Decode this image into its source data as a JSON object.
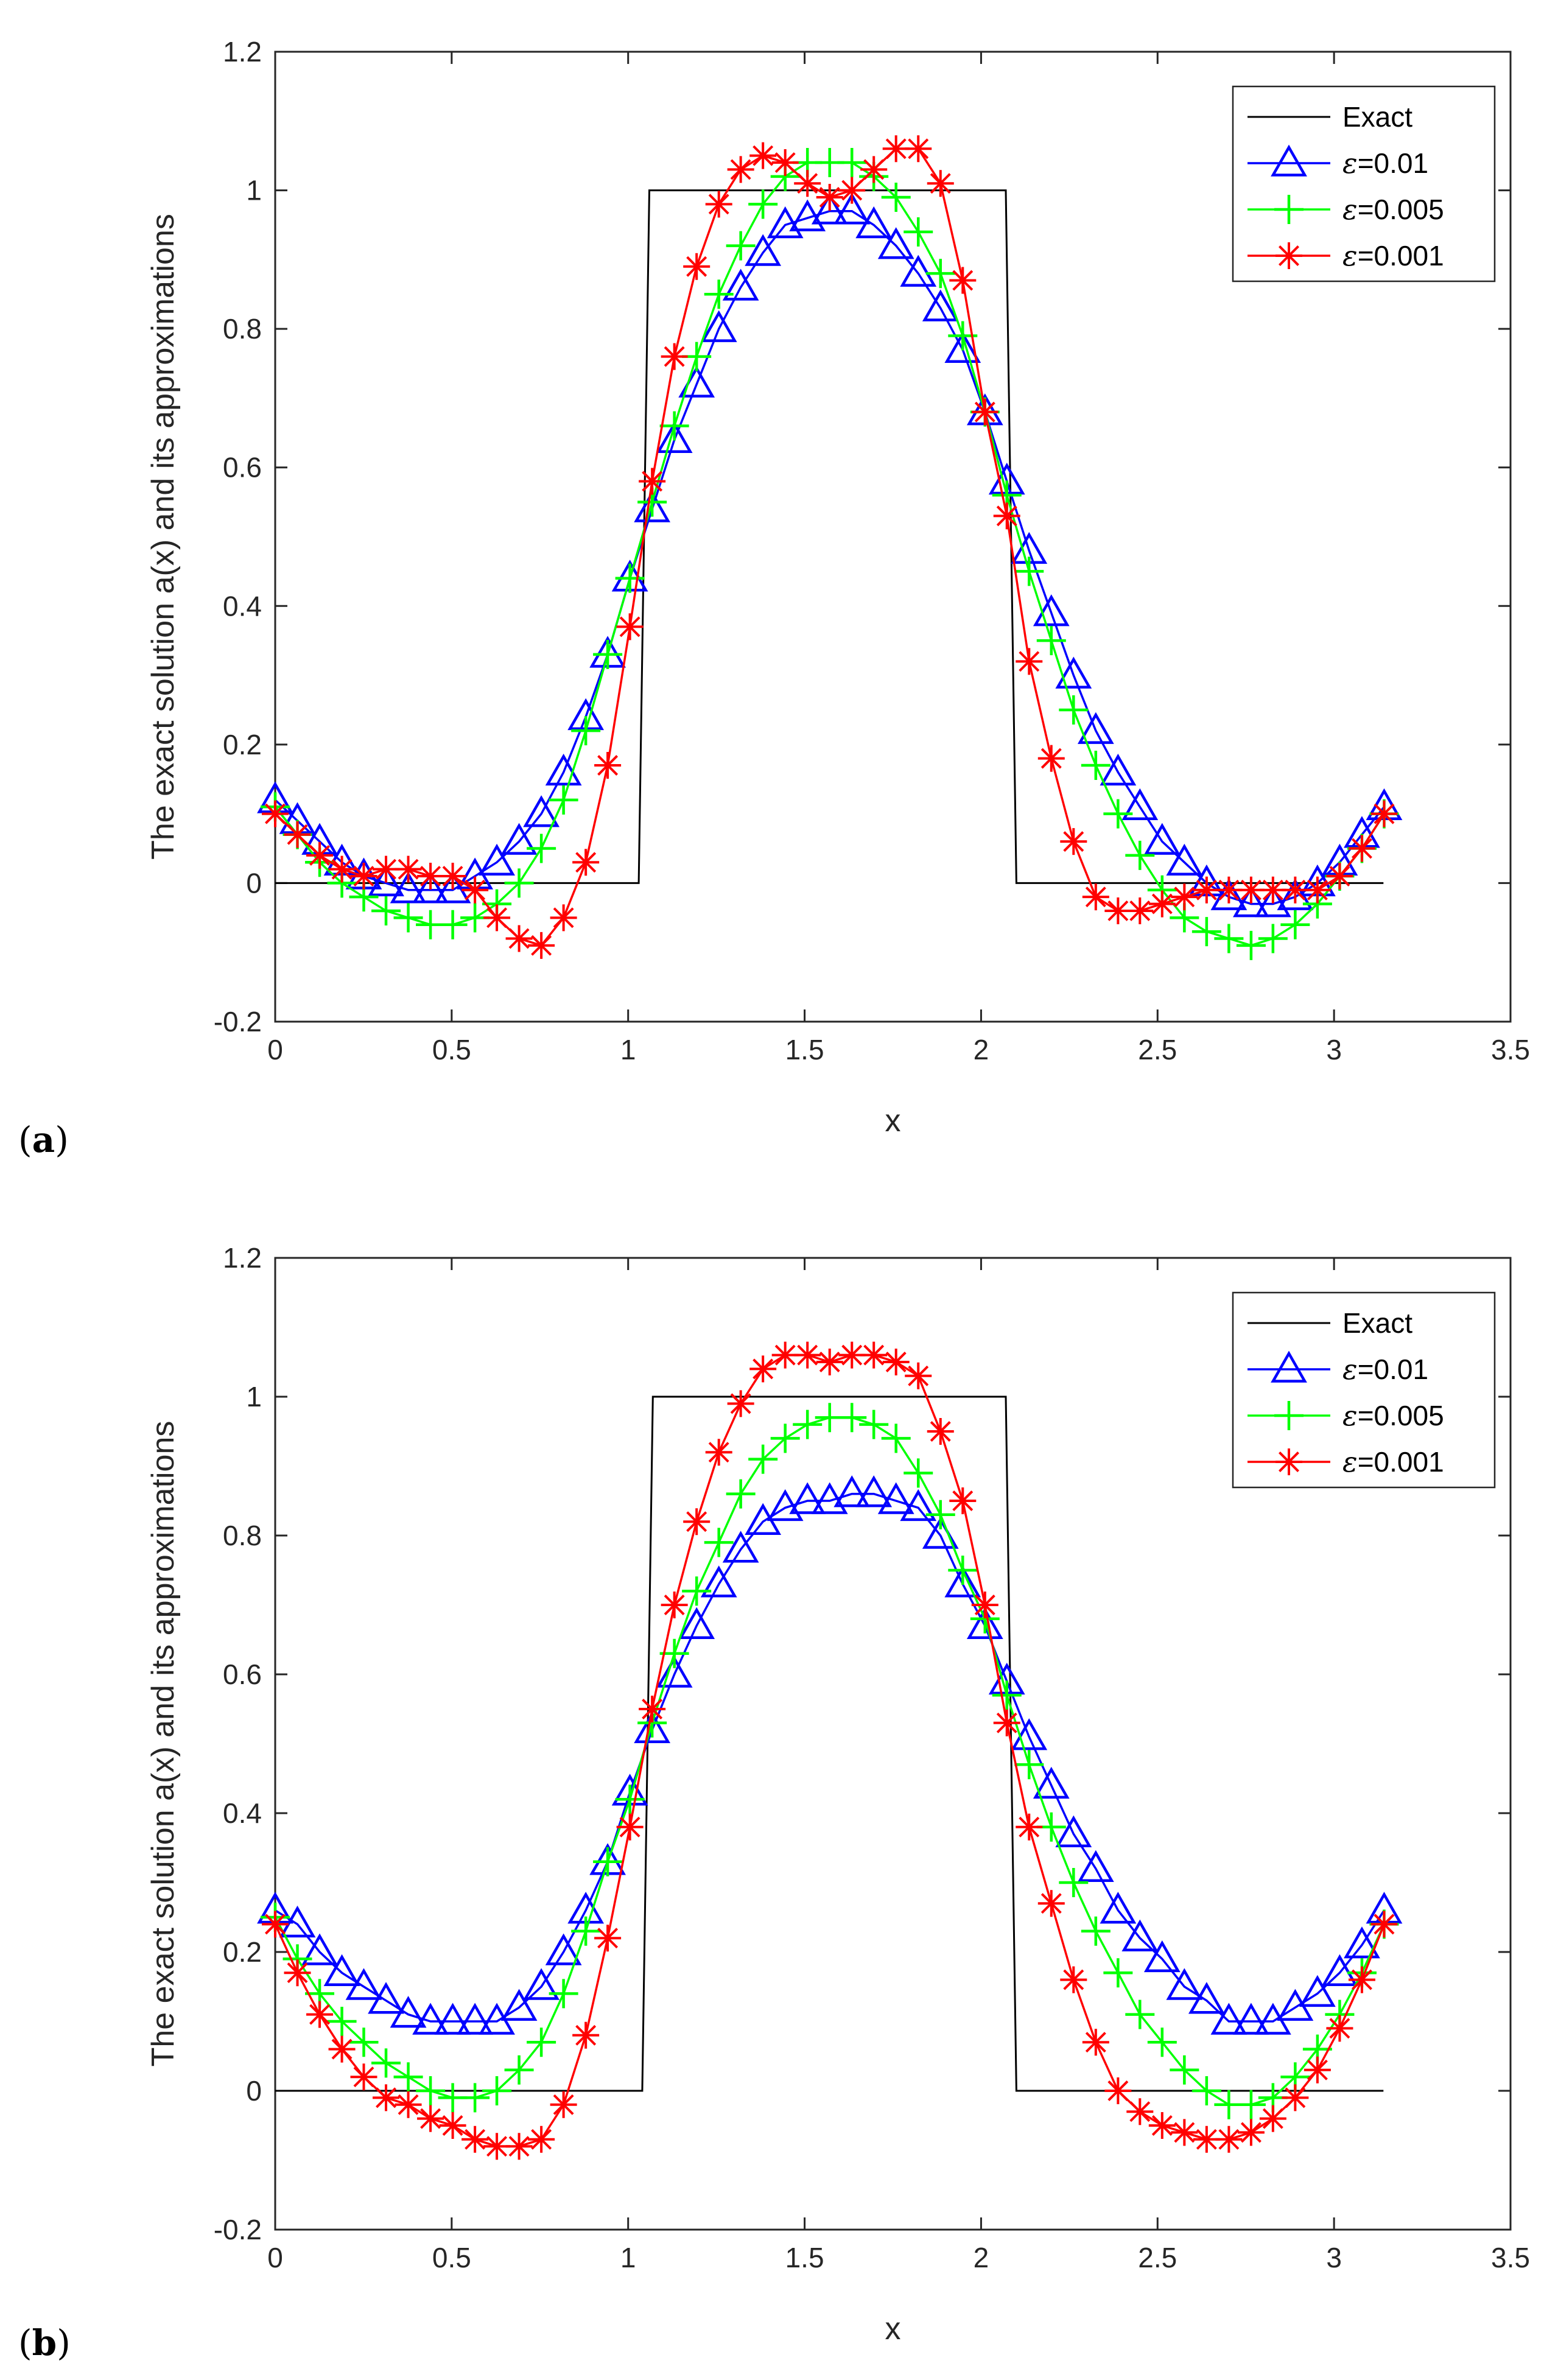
{
  "chart_data": [
    {
      "type": "line",
      "panel_label": "a",
      "xlabel": "x",
      "ylabel": "The exact solution a(x) and its approximations",
      "xlim": [
        0,
        3.5
      ],
      "ylim": [
        -0.2,
        1.2
      ],
      "xticks": [
        "0",
        "0.5",
        "1",
        "1.5",
        "2",
        "2.5",
        "3",
        "3.5"
      ],
      "yticks": [
        "-0.2",
        "0",
        "0.2",
        "0.4",
        "0.6",
        "0.8",
        "1",
        "1.2"
      ],
      "legend_position": "top-right",
      "exact": {
        "name": "Exact",
        "color": "#000000",
        "x": [
          0,
          1.03,
          1.06,
          2.07,
          2.1,
          3.14
        ],
        "y": [
          0,
          0,
          1,
          1,
          0,
          0
        ]
      },
      "series": [
        {
          "name": "ε=0.01",
          "color": "#0000ff",
          "marker": "triangle",
          "x": [
            0.0,
            0.063,
            0.126,
            0.189,
            0.251,
            0.314,
            0.377,
            0.44,
            0.503,
            0.566,
            0.628,
            0.691,
            0.754,
            0.817,
            0.88,
            0.942,
            1.005,
            1.068,
            1.131,
            1.194,
            1.257,
            1.319,
            1.382,
            1.445,
            1.508,
            1.571,
            1.634,
            1.696,
            1.759,
            1.822,
            1.885,
            1.948,
            2.011,
            2.073,
            2.136,
            2.199,
            2.262,
            2.325,
            2.388,
            2.45,
            2.513,
            2.576,
            2.639,
            2.702,
            2.765,
            2.827,
            2.89,
            2.953,
            3.016,
            3.079,
            3.142
          ],
          "y": [
            0.12,
            0.09,
            0.06,
            0.03,
            0.01,
            0.0,
            -0.01,
            -0.01,
            -0.01,
            0.01,
            0.03,
            0.06,
            0.1,
            0.16,
            0.24,
            0.33,
            0.44,
            0.54,
            0.64,
            0.72,
            0.8,
            0.86,
            0.91,
            0.95,
            0.96,
            0.97,
            0.97,
            0.95,
            0.92,
            0.88,
            0.83,
            0.77,
            0.68,
            0.58,
            0.48,
            0.39,
            0.3,
            0.22,
            0.16,
            0.11,
            0.06,
            0.03,
            0.0,
            -0.02,
            -0.03,
            -0.03,
            -0.02,
            0.0,
            0.03,
            0.07,
            0.11
          ]
        },
        {
          "name": "ε=0.005",
          "color": "#00ff00",
          "marker": "plus",
          "x": [
            0.0,
            0.063,
            0.126,
            0.189,
            0.251,
            0.314,
            0.377,
            0.44,
            0.503,
            0.566,
            0.628,
            0.691,
            0.754,
            0.817,
            0.88,
            0.942,
            1.005,
            1.068,
            1.131,
            1.194,
            1.257,
            1.319,
            1.382,
            1.445,
            1.508,
            1.571,
            1.634,
            1.696,
            1.759,
            1.822,
            1.885,
            1.948,
            2.011,
            2.073,
            2.136,
            2.199,
            2.262,
            2.325,
            2.388,
            2.45,
            2.513,
            2.576,
            2.639,
            2.702,
            2.765,
            2.827,
            2.89,
            2.953,
            3.016,
            3.079,
            3.142
          ],
          "y": [
            0.11,
            0.07,
            0.03,
            0.0,
            -0.02,
            -0.04,
            -0.05,
            -0.06,
            -0.06,
            -0.05,
            -0.03,
            0.0,
            0.05,
            0.12,
            0.22,
            0.33,
            0.44,
            0.55,
            0.66,
            0.76,
            0.85,
            0.92,
            0.98,
            1.02,
            1.04,
            1.04,
            1.04,
            1.02,
            0.99,
            0.94,
            0.88,
            0.79,
            0.68,
            0.56,
            0.45,
            0.35,
            0.25,
            0.17,
            0.1,
            0.04,
            -0.01,
            -0.05,
            -0.07,
            -0.08,
            -0.09,
            -0.08,
            -0.06,
            -0.03,
            0.01,
            0.05,
            0.1
          ]
        },
        {
          "name": "ε=0.001",
          "color": "#ff0000",
          "marker": "asterisk",
          "x": [
            0.0,
            0.063,
            0.126,
            0.189,
            0.251,
            0.314,
            0.377,
            0.44,
            0.503,
            0.566,
            0.628,
            0.691,
            0.754,
            0.817,
            0.88,
            0.942,
            1.005,
            1.068,
            1.131,
            1.194,
            1.257,
            1.319,
            1.382,
            1.445,
            1.508,
            1.571,
            1.634,
            1.696,
            1.759,
            1.822,
            1.885,
            1.948,
            2.011,
            2.073,
            2.136,
            2.199,
            2.262,
            2.325,
            2.388,
            2.45,
            2.513,
            2.576,
            2.639,
            2.702,
            2.765,
            2.827,
            2.89,
            2.953,
            3.016,
            3.079,
            3.142
          ],
          "y": [
            0.1,
            0.07,
            0.04,
            0.02,
            0.01,
            0.02,
            0.02,
            0.01,
            0.01,
            -0.01,
            -0.05,
            -0.08,
            -0.09,
            -0.05,
            0.03,
            0.17,
            0.37,
            0.58,
            0.76,
            0.89,
            0.98,
            1.03,
            1.05,
            1.04,
            1.01,
            0.99,
            1.0,
            1.03,
            1.06,
            1.06,
            1.01,
            0.87,
            0.68,
            0.53,
            0.32,
            0.18,
            0.06,
            -0.02,
            -0.04,
            -0.04,
            -0.03,
            -0.02,
            -0.01,
            -0.01,
            -0.01,
            -0.01,
            -0.01,
            -0.01,
            0.01,
            0.05,
            0.1
          ]
        }
      ]
    },
    {
      "type": "line",
      "panel_label": "b",
      "xlabel": "x",
      "ylabel": "The exact solution a(x) and its approximations",
      "xlim": [
        0,
        3.5
      ],
      "ylim": [
        -0.2,
        1.2
      ],
      "xticks": [
        "0",
        "0.5",
        "1",
        "1.5",
        "2",
        "2.5",
        "3",
        "3.5"
      ],
      "yticks": [
        "-0.2",
        "0",
        "0.2",
        "0.4",
        "0.6",
        "0.8",
        "1",
        "1.2"
      ],
      "legend_position": "top-right",
      "exact": {
        "name": "Exact",
        "color": "#000000",
        "x": [
          0,
          1.04,
          1.07,
          2.07,
          2.1,
          3.14
        ],
        "y": [
          0,
          0,
          1,
          1,
          0,
          0
        ]
      },
      "series": [
        {
          "name": "ε=0.01",
          "color": "#0000ff",
          "marker": "triangle",
          "x": [
            0.0,
            0.063,
            0.126,
            0.189,
            0.251,
            0.314,
            0.377,
            0.44,
            0.503,
            0.566,
            0.628,
            0.691,
            0.754,
            0.817,
            0.88,
            0.942,
            1.005,
            1.068,
            1.131,
            1.194,
            1.257,
            1.319,
            1.382,
            1.445,
            1.508,
            1.571,
            1.634,
            1.696,
            1.759,
            1.822,
            1.885,
            1.948,
            2.011,
            2.073,
            2.136,
            2.199,
            2.262,
            2.325,
            2.388,
            2.45,
            2.513,
            2.576,
            2.639,
            2.702,
            2.765,
            2.827,
            2.89,
            2.953,
            3.016,
            3.079,
            3.142
          ],
          "y": [
            0.26,
            0.24,
            0.2,
            0.17,
            0.15,
            0.13,
            0.11,
            0.1,
            0.1,
            0.1,
            0.1,
            0.12,
            0.15,
            0.2,
            0.26,
            0.33,
            0.43,
            0.52,
            0.6,
            0.67,
            0.73,
            0.78,
            0.82,
            0.84,
            0.85,
            0.85,
            0.86,
            0.86,
            0.85,
            0.84,
            0.8,
            0.73,
            0.67,
            0.59,
            0.51,
            0.44,
            0.37,
            0.32,
            0.26,
            0.22,
            0.19,
            0.15,
            0.13,
            0.1,
            0.1,
            0.1,
            0.12,
            0.14,
            0.17,
            0.21,
            0.26
          ]
        },
        {
          "name": "ε=0.005",
          "color": "#00ff00",
          "marker": "plus",
          "x": [
            0.0,
            0.063,
            0.126,
            0.189,
            0.251,
            0.314,
            0.377,
            0.44,
            0.503,
            0.566,
            0.628,
            0.691,
            0.754,
            0.817,
            0.88,
            0.942,
            1.005,
            1.068,
            1.131,
            1.194,
            1.257,
            1.319,
            1.382,
            1.445,
            1.508,
            1.571,
            1.634,
            1.696,
            1.759,
            1.822,
            1.885,
            1.948,
            2.011,
            2.073,
            2.136,
            2.199,
            2.262,
            2.325,
            2.388,
            2.45,
            2.513,
            2.576,
            2.639,
            2.702,
            2.765,
            2.827,
            2.89,
            2.953,
            3.016,
            3.079,
            3.142
          ],
          "y": [
            0.25,
            0.19,
            0.14,
            0.1,
            0.07,
            0.04,
            0.02,
            0.0,
            -0.01,
            -0.01,
            0.0,
            0.03,
            0.07,
            0.14,
            0.23,
            0.33,
            0.42,
            0.53,
            0.63,
            0.72,
            0.79,
            0.86,
            0.91,
            0.94,
            0.96,
            0.97,
            0.97,
            0.96,
            0.94,
            0.89,
            0.83,
            0.75,
            0.68,
            0.57,
            0.47,
            0.38,
            0.3,
            0.23,
            0.17,
            0.11,
            0.07,
            0.03,
            0.0,
            -0.02,
            -0.02,
            -0.01,
            0.02,
            0.06,
            0.11,
            0.17,
            0.24
          ]
        },
        {
          "name": "ε=0.001",
          "color": "#ff0000",
          "marker": "asterisk",
          "x": [
            0.0,
            0.063,
            0.126,
            0.189,
            0.251,
            0.314,
            0.377,
            0.44,
            0.503,
            0.566,
            0.628,
            0.691,
            0.754,
            0.817,
            0.88,
            0.942,
            1.005,
            1.068,
            1.131,
            1.194,
            1.257,
            1.319,
            1.382,
            1.445,
            1.508,
            1.571,
            1.634,
            1.696,
            1.759,
            1.822,
            1.885,
            1.948,
            2.011,
            2.073,
            2.136,
            2.199,
            2.262,
            2.325,
            2.388,
            2.45,
            2.513,
            2.576,
            2.639,
            2.702,
            2.765,
            2.827,
            2.89,
            2.953,
            3.016,
            3.079,
            3.142
          ],
          "y": [
            0.24,
            0.17,
            0.11,
            0.06,
            0.02,
            -0.01,
            -0.02,
            -0.04,
            -0.05,
            -0.07,
            -0.08,
            -0.08,
            -0.07,
            -0.02,
            0.08,
            0.22,
            0.38,
            0.55,
            0.7,
            0.82,
            0.92,
            0.99,
            1.04,
            1.06,
            1.06,
            1.05,
            1.06,
            1.06,
            1.05,
            1.03,
            0.95,
            0.85,
            0.7,
            0.53,
            0.38,
            0.27,
            0.16,
            0.07,
            0.0,
            -0.03,
            -0.05,
            -0.06,
            -0.07,
            -0.07,
            -0.06,
            -0.04,
            -0.01,
            0.03,
            0.09,
            0.16,
            0.24
          ]
        }
      ]
    }
  ]
}
